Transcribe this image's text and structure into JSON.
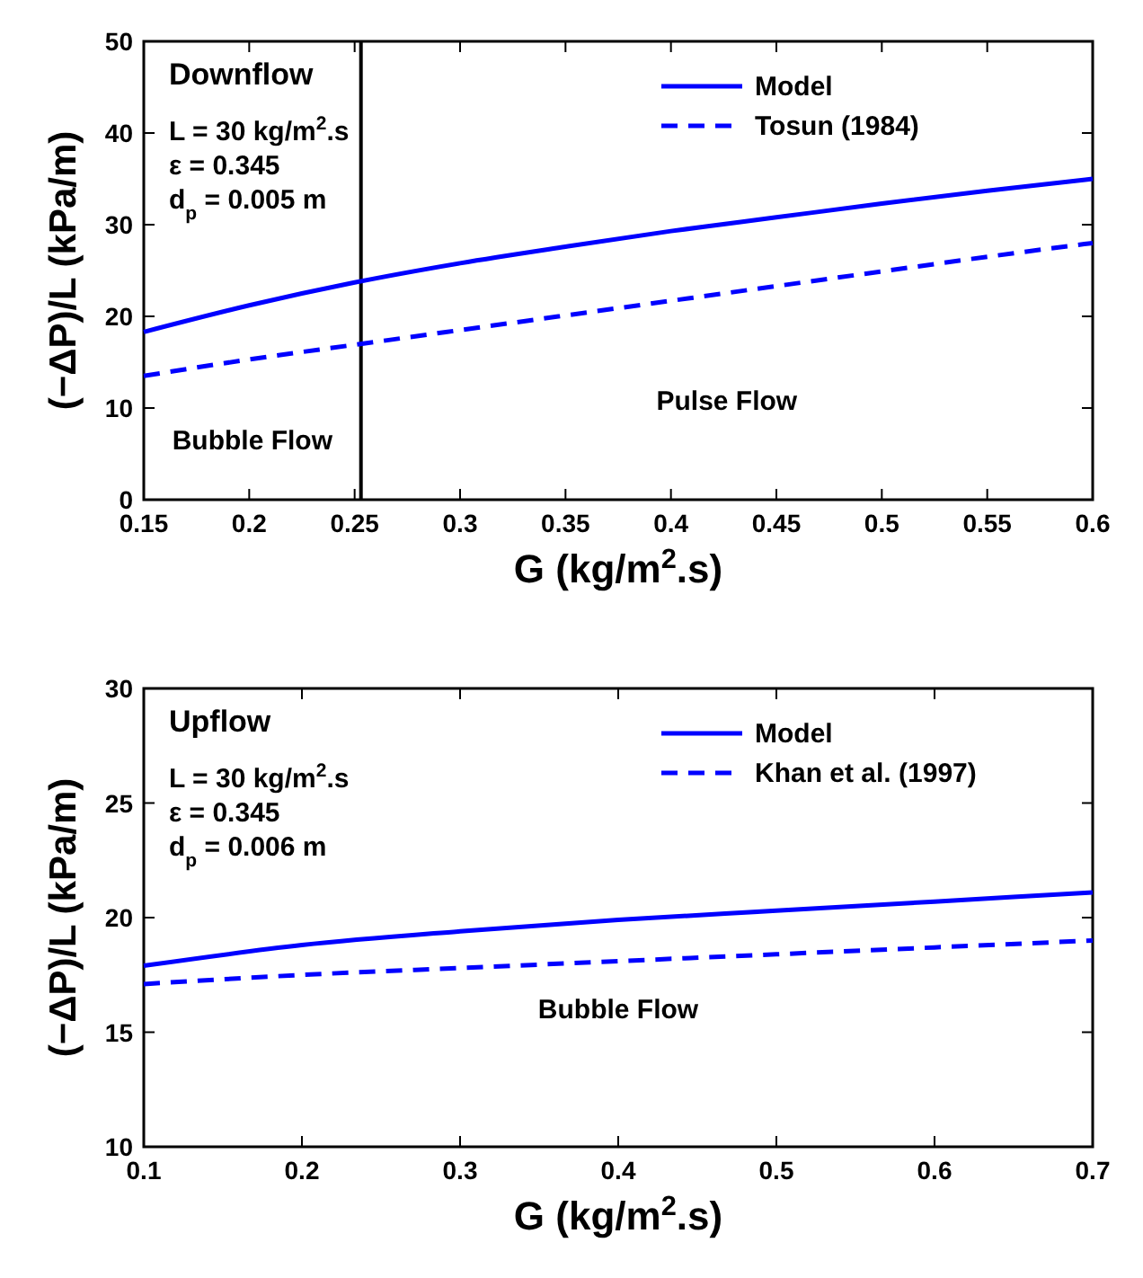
{
  "chart_data": [
    {
      "type": "line",
      "xlabel": "G (kg/m$^{2}$.s)",
      "ylabel": "(−ΔP)/L (kPa/m)",
      "xlim": [
        0.15,
        0.6
      ],
      "xticks": [
        0.15,
        0.2,
        0.25,
        0.3,
        0.35,
        0.4,
        0.45,
        0.5,
        0.55,
        0.6
      ],
      "ylim": [
        0,
        50
      ],
      "yticks": [
        0,
        10,
        20,
        30,
        40,
        50
      ],
      "grid": false,
      "legend": "top right",
      "marker": "none",
      "x": [
        0.15,
        0.2,
        0.25,
        0.3,
        0.35,
        0.4,
        0.45,
        0.5,
        0.55,
        0.6
      ],
      "series": [
        {
          "name": "Model",
          "color": "#0000ff",
          "line_style": "solid",
          "values": [
            18.3,
            21.2,
            23.7,
            25.8,
            27.6,
            29.3,
            30.8,
            32.3,
            33.7,
            35.0
          ]
        },
        {
          "name": "Tosun (1984)",
          "color": "#0000ff",
          "line_style": "dashed",
          "values": [
            13.5,
            15.3,
            16.9,
            18.5,
            20.1,
            21.7,
            23.3,
            24.9,
            26.5,
            28.0
          ]
        }
      ],
      "ref_lines": [
        {
          "axis": "x",
          "value": 0.253,
          "label": null,
          "color": "#000000",
          "line_style": "solid"
        }
      ],
      "annotations": [
        "Downflow",
        "L = 30 kg/m$^{2}$.s",
        "ε = 0.345",
        "d$_{p}$ = 0.005 m",
        "Bubble Flow",
        "Pulse Flow"
      ]
    },
    {
      "type": "line",
      "xlabel": "G (kg/m$^{2}$.s)",
      "ylabel": "(−ΔP)/L (kPa/m)",
      "xlim": [
        0.1,
        0.7
      ],
      "xticks": [
        0.1,
        0.2,
        0.3,
        0.4,
        0.5,
        0.6,
        0.7
      ],
      "ylim": [
        10,
        30
      ],
      "yticks": [
        10,
        15,
        20,
        25,
        30
      ],
      "grid": false,
      "legend": "top right",
      "marker": "none",
      "x": [
        0.1,
        0.2,
        0.3,
        0.4,
        0.5,
        0.6,
        0.7
      ],
      "series": [
        {
          "name": "Model",
          "color": "#0000ff",
          "line_style": "solid",
          "values": [
            17.9,
            18.8,
            19.4,
            19.9,
            20.3,
            20.7,
            21.1
          ]
        },
        {
          "name": "Khan et al. (1997)",
          "color": "#0000ff",
          "line_style": "dashed",
          "values": [
            17.1,
            17.5,
            17.8,
            18.1,
            18.4,
            18.7,
            19.0
          ]
        }
      ],
      "annotations": [
        "Upflow",
        "L = 30 kg/m$^{2}$.s",
        "ε = 0.345",
        "d$_{p}$ = 0.006 m",
        "Bubble Flow"
      ]
    }
  ]
}
